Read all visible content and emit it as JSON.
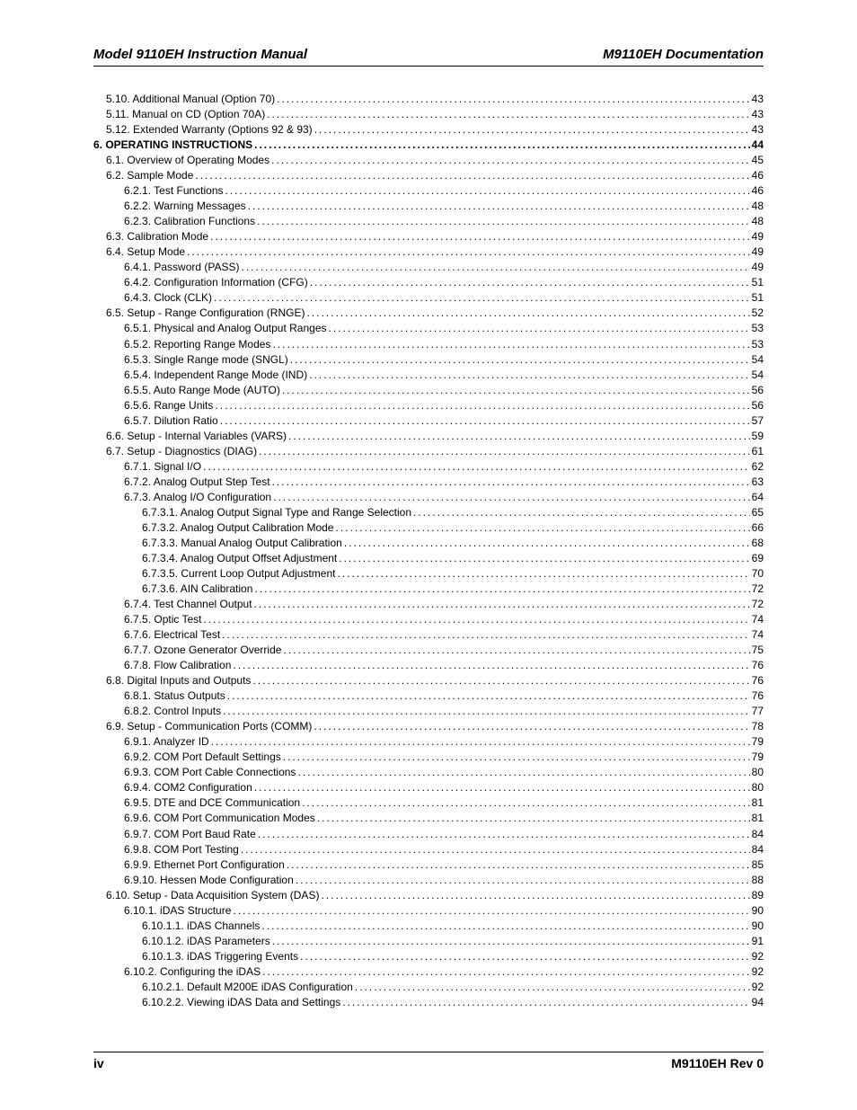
{
  "header": {
    "left": "Model 9110EH Instruction Manual",
    "right": "M9110EH Documentation"
  },
  "footer": {
    "page_num": "iv",
    "rev": "M9110EH Rev 0"
  },
  "toc_entries": [
    {
      "indent": 1,
      "label": "5.10. Additional Manual (Option 70)",
      "page": "43"
    },
    {
      "indent": 1,
      "label": "5.11. Manual on CD (Option 70A)",
      "page": "43"
    },
    {
      "indent": 1,
      "label": "5.12. Extended Warranty (Options 92 & 93)",
      "page": "43"
    },
    {
      "indent": 0,
      "label": "6. OPERATING INSTRUCTIONS ",
      "page": " 44"
    },
    {
      "indent": 1,
      "label": "6.1. Overview of Operating Modes ",
      "page": "45"
    },
    {
      "indent": 1,
      "label": "6.2. Sample Mode ",
      "page": "46"
    },
    {
      "indent": 2,
      "label": "6.2.1. Test Functions ",
      "page": "46"
    },
    {
      "indent": 2,
      "label": "6.2.2. Warning Messages",
      "page": "48"
    },
    {
      "indent": 2,
      "label": "6.2.3. Calibration Functions ",
      "page": "48"
    },
    {
      "indent": 1,
      "label": "6.3. Calibration Mode",
      "page": "49"
    },
    {
      "indent": 1,
      "label": "6.4. Setup Mode ",
      "page": "49"
    },
    {
      "indent": 2,
      "label": "6.4.1. Password (PASS)",
      "page": "49"
    },
    {
      "indent": 2,
      "label": "6.4.2. Configuration Information (CFG)",
      "page": "51"
    },
    {
      "indent": 2,
      "label": "6.4.3. Clock (CLK) ",
      "page": "51"
    },
    {
      "indent": 1,
      "label": "6.5. Setup - Range Configuration (RNGE) ",
      "page": "52"
    },
    {
      "indent": 2,
      "label": "6.5.1. Physical and Analog Output Ranges",
      "page": "53"
    },
    {
      "indent": 2,
      "label": "6.5.2. Reporting Range Modes",
      "page": "53"
    },
    {
      "indent": 2,
      "label": "6.5.3. Single Range mode (SNGL)",
      "page": "54"
    },
    {
      "indent": 2,
      "label": "6.5.4. Independent Range Mode (IND) ",
      "page": "54"
    },
    {
      "indent": 2,
      "label": "6.5.5. Auto Range Mode (AUTO) ",
      "page": "56"
    },
    {
      "indent": 2,
      "label": "6.5.6. Range Units",
      "page": "56"
    },
    {
      "indent": 2,
      "label": "6.5.7. Dilution Ratio",
      "page": "57"
    },
    {
      "indent": 1,
      "label": "6.6. Setup - Internal Variables (VARS) ",
      "page": "59"
    },
    {
      "indent": 1,
      "label": "6.7. Setup - Diagnostics (DIAG) ",
      "page": "61"
    },
    {
      "indent": 2,
      "label": "6.7.1. Signal I/O ",
      "page": "62"
    },
    {
      "indent": 2,
      "label": "6.7.2. Analog Output Step Test",
      "page": "63"
    },
    {
      "indent": 2,
      "label": "6.7.3. Analog I/O Configuration ",
      "page": "64"
    },
    {
      "indent": 3,
      "label": "6.7.3.1. Analog Output Signal Type and Range Selection ",
      "page": "65"
    },
    {
      "indent": 3,
      "label": "6.7.3.2. Analog Output Calibration Mode ",
      "page": "66"
    },
    {
      "indent": 3,
      "label": "6.7.3.3. Manual Analog Output Calibration",
      "page": "68"
    },
    {
      "indent": 3,
      "label": "6.7.3.4. Analog Output Offset Adjustment ",
      "page": "69"
    },
    {
      "indent": 3,
      "label": "6.7.3.5. Current Loop Output Adjustment",
      "page": "70"
    },
    {
      "indent": 3,
      "label": "6.7.3.6. AIN Calibration ",
      "page": "72"
    },
    {
      "indent": 2,
      "label": "6.7.4. Test Channel Output ",
      "page": "72"
    },
    {
      "indent": 2,
      "label": "6.7.5. Optic Test ",
      "page": "74"
    },
    {
      "indent": 2,
      "label": "6.7.6. Electrical Test ",
      "page": "74"
    },
    {
      "indent": 2,
      "label": "6.7.7. Ozone Generator Override ",
      "page": "75"
    },
    {
      "indent": 2,
      "label": "6.7.8. Flow Calibration ",
      "page": "76"
    },
    {
      "indent": 1,
      "label": "6.8. Digital Inputs and Outputs ",
      "page": "76"
    },
    {
      "indent": 2,
      "label": "6.8.1. Status Outputs",
      "page": "76"
    },
    {
      "indent": 2,
      "label": "6.8.2. Control Inputs",
      "page": "77"
    },
    {
      "indent": 1,
      "label": "6.9. Setup - Communication Ports (COMM) ",
      "page": "78"
    },
    {
      "indent": 2,
      "label": "6.9.1. Analyzer ID ",
      "page": "79"
    },
    {
      "indent": 2,
      "label": "6.9.2. COM Port Default Settings ",
      "page": "79"
    },
    {
      "indent": 2,
      "label": "6.9.3. COM Port Cable Connections ",
      "page": "80"
    },
    {
      "indent": 2,
      "label": "6.9.4. COM2 Configuration",
      "page": "80"
    },
    {
      "indent": 2,
      "label": "6.9.5. DTE and DCE Communication",
      "page": "81"
    },
    {
      "indent": 2,
      "label": "6.9.6. COM Port Communication Modes ",
      "page": "81"
    },
    {
      "indent": 2,
      "label": "6.9.7. COM Port Baud Rate ",
      "page": "84"
    },
    {
      "indent": 2,
      "label": "6.9.8. COM Port Testing ",
      "page": "84"
    },
    {
      "indent": 2,
      "label": "6.9.9. Ethernet Port Configuration",
      "page": "85"
    },
    {
      "indent": 2,
      "label": "6.9.10. Hessen Mode Configuration ",
      "page": "88"
    },
    {
      "indent": 1,
      "label": "6.10. Setup - Data Acquisition System (DAS) ",
      "page": "89"
    },
    {
      "indent": 2,
      "label": "6.10.1. iDAS Structure ",
      "page": "90"
    },
    {
      "indent": 3,
      "label": "6.10.1.1. iDAS Channels ",
      "page": "90"
    },
    {
      "indent": 3,
      "label": "6.10.1.2. iDAS Parameters ",
      "page": "91"
    },
    {
      "indent": 3,
      "label": "6.10.1.3. iDAS Triggering Events",
      "page": "92"
    },
    {
      "indent": 2,
      "label": "6.10.2. Configuring the iDAS",
      "page": "92"
    },
    {
      "indent": 3,
      "label": "6.10.2.1. Default M200E iDAS Configuration ",
      "page": "92"
    },
    {
      "indent": 3,
      "label": "6.10.2.2. Viewing iDAS Data and Settings ",
      "page": "94"
    }
  ]
}
